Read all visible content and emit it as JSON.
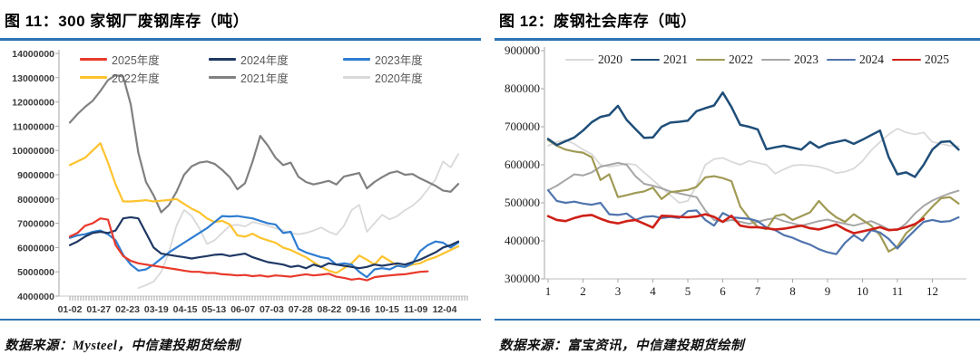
{
  "accent_rule_color": "#2e74b5",
  "panels": [
    {
      "title": "图 11：300 家钢厂废钢库存（吨）",
      "source": "数据来源：Mysteel，中信建投期货绘制"
    },
    {
      "title": "图 12：废钢社会库存（吨）",
      "source": "数据来源：富宝资讯，中信建投期货绘制"
    }
  ],
  "chart_data": [
    {
      "type": "line",
      "title": "300 家钢厂废钢库存（吨）",
      "ylabel": "吨",
      "ylim": [
        4000000,
        14000000
      ],
      "grid": false,
      "legend_position": "top-inside",
      "y_ticks": [
        14000000,
        13000000,
        12000000,
        11000000,
        10000000,
        9000000,
        8000000,
        7000000,
        6000000,
        5000000,
        4000000
      ],
      "x_tick_labels": [
        "01-02",
        "01-27",
        "02-23",
        "03-19",
        "04-15",
        "05-13",
        "06-07",
        "07-03",
        "07-28",
        "08-22",
        "09-16",
        "10-15",
        "11-09",
        "12-04"
      ],
      "x_unit": "week-of-year (0-51)",
      "legend_rows": [
        [
          "2025年度",
          "2024年度",
          "2023年度"
        ],
        [
          "2022年度",
          "2021年度",
          "2020年度"
        ]
      ],
      "series": [
        {
          "name": "2020年度",
          "color": "#d9d9d9",
          "width": 1.8,
          "start_index": 9,
          "values": [
            4330000,
            4450000,
            4600000,
            5000000,
            5800000,
            6900000,
            7550000,
            7300000,
            6800000,
            6150000,
            6300000,
            6600000,
            6900000,
            6940000,
            6870000,
            7050000,
            6980000,
            6900000,
            6800000,
            6700000,
            6600000,
            6550000,
            6600000,
            6700000,
            6830000,
            6650000,
            6530000,
            6900000,
            7540000,
            7760000,
            6650000,
            7000000,
            7350000,
            7160000,
            7300000,
            7540000,
            7720000,
            8000000,
            8400000,
            8800000,
            9550000,
            9300000,
            9850000
          ]
        },
        {
          "name": "2021年度",
          "color": "#808080",
          "width": 2.2,
          "start_index": 0,
          "values": [
            11150000,
            11500000,
            11800000,
            12050000,
            12450000,
            12900000,
            13100000,
            13050000,
            11900000,
            9900000,
            8700000,
            8150000,
            7450000,
            7750000,
            8300000,
            9000000,
            9350000,
            9500000,
            9550000,
            9450000,
            9200000,
            8900000,
            8400000,
            8650000,
            9550000,
            10600000,
            10200000,
            9700000,
            9400000,
            9500000,
            8920000,
            8700000,
            8600000,
            8670000,
            8750000,
            8600000,
            8930000,
            9000000,
            9070000,
            8440000,
            8700000,
            8900000,
            9070000,
            9140000,
            9000000,
            9030000,
            8850000,
            8700000,
            8550000,
            8350000,
            8300000,
            8620000
          ]
        },
        {
          "name": "2022年度",
          "color": "#fdc32e",
          "width": 2.2,
          "start_index": 0,
          "values": [
            9400000,
            9550000,
            9700000,
            10000000,
            10300000,
            9500000,
            8600000,
            7900000,
            7900000,
            7920000,
            7950000,
            7900000,
            7930000,
            7960000,
            8000000,
            7800000,
            7600000,
            7450000,
            7200000,
            7050000,
            7100000,
            6950000,
            6500000,
            6450000,
            6570000,
            6400000,
            6300000,
            6200000,
            6000000,
            5900000,
            5750000,
            5600000,
            5400000,
            5200000,
            5050000,
            4950000,
            5150000,
            5350000,
            5670000,
            5500000,
            5300000,
            5640000,
            5450000,
            5250000,
            5200000,
            5300000,
            5350000,
            5500000,
            5600000,
            5750000,
            5900000,
            6050000
          ]
        },
        {
          "name": "2023年度",
          "color": "#2e7dd1",
          "width": 2.2,
          "start_index": 0,
          "values": [
            6400000,
            6500000,
            6550000,
            6650000,
            6700000,
            6550000,
            6300000,
            5700000,
            5300000,
            5050000,
            5100000,
            5300000,
            5550000,
            5800000,
            6000000,
            6200000,
            6400000,
            6600000,
            6800000,
            7050000,
            7300000,
            7280000,
            7300000,
            7250000,
            7200000,
            7100000,
            7000000,
            6950000,
            6600000,
            6650000,
            5950000,
            5800000,
            5700000,
            5600000,
            5550000,
            5300000,
            5350000,
            5300000,
            5000000,
            4780000,
            5100000,
            5150000,
            5100000,
            5250000,
            5200000,
            5350000,
            5850000,
            6100000,
            6250000,
            6200000,
            6000000,
            6200000
          ]
        },
        {
          "name": "2024年度",
          "color": "#1f3864",
          "width": 2.2,
          "start_index": 0,
          "values": [
            6100000,
            6250000,
            6450000,
            6600000,
            6650000,
            6600000,
            6700000,
            7200000,
            7250000,
            7200000,
            6600000,
            6000000,
            5750000,
            5700000,
            5650000,
            5600000,
            5550000,
            5600000,
            5650000,
            5700000,
            5720000,
            5650000,
            5700000,
            5750000,
            5600000,
            5500000,
            5400000,
            5350000,
            5300000,
            5200000,
            5250000,
            5150000,
            5300000,
            5200000,
            5350000,
            5300000,
            5250000,
            5200000,
            5150000,
            5200000,
            5300000,
            5250000,
            5300000,
            5350000,
            5300000,
            5400000,
            5500000,
            5650000,
            5800000,
            6000000,
            6100000,
            6250000
          ]
        },
        {
          "name": "2025年度",
          "color": "#e8392b",
          "width": 2.2,
          "start_index": 0,
          "values": [
            6450000,
            6600000,
            6900000,
            7000000,
            7200000,
            7150000,
            6100000,
            5650000,
            5450000,
            5350000,
            5300000,
            5250000,
            5200000,
            5150000,
            5100000,
            5050000,
            5000000,
            5000000,
            4950000,
            4950000,
            4900000,
            4880000,
            4850000,
            4870000,
            4820000,
            4850000,
            4800000,
            4850000,
            4830000,
            4800000,
            4850000,
            4900000,
            4850000,
            4880000,
            4920000,
            4800000,
            4750000,
            4680000,
            4720000,
            4650000,
            4780000,
            4820000,
            4850000,
            4880000,
            4900000,
            4950000,
            5000000,
            5020000
          ]
        }
      ]
    },
    {
      "type": "line",
      "title": "废钢社会库存（吨）",
      "ylabel": "吨",
      "ylim": [
        300000,
        900000
      ],
      "grid": false,
      "legend_position": "top-inside",
      "y_ticks": [
        900000,
        800000,
        700000,
        600000,
        500000,
        400000,
        300000
      ],
      "x_tick_labels": [
        "1",
        "2",
        "3",
        "4",
        "5",
        "6",
        "7",
        "8",
        "9",
        "10",
        "11",
        "12"
      ],
      "x_unit": "month (weekly points)",
      "legend_order": [
        "2020",
        "2021",
        "2022",
        "2023",
        "2024",
        "2025"
      ],
      "series": [
        {
          "name": "2020",
          "color": "#d9d9d9",
          "width": 1.8,
          "start_index": 0,
          "values": [
            650000,
            660000,
            665000,
            655000,
            640000,
            628000,
            600000,
            595000,
            598000,
            603000,
            600000,
            580000,
            560000,
            540000,
            520000,
            500000,
            505000,
            545000,
            600000,
            615000,
            618000,
            608000,
            600000,
            610000,
            605000,
            600000,
            577000,
            588000,
            598000,
            600000,
            598000,
            595000,
            588000,
            578000,
            582000,
            590000,
            610000,
            638000,
            660000,
            680000,
            695000,
            685000,
            680000,
            685000,
            660000,
            655000,
            650000,
            648000
          ]
        },
        {
          "name": "2023",
          "color": "#a6a6a6",
          "width": 2.0,
          "start_index": 0,
          "values": [
            533000,
            545000,
            560000,
            575000,
            572000,
            580000,
            595000,
            600000,
            605000,
            600000,
            570000,
            550000,
            545000,
            538000,
            530000,
            525000,
            520000,
            515000,
            480000,
            455000,
            450000,
            455000,
            450000,
            445000,
            450000,
            456000,
            460000,
            452000,
            446000,
            440000,
            446000,
            452000,
            456000,
            450000,
            445000,
            440000,
            446000,
            452000,
            442000,
            430000,
            428000,
            446000,
            472000,
            492000,
            506000,
            516000,
            525000,
            532000
          ]
        },
        {
          "name": "2022",
          "color": "#a09a55",
          "width": 2.2,
          "start_index": 0,
          "values": [
            665000,
            650000,
            640000,
            635000,
            632000,
            620000,
            560000,
            575000,
            515000,
            520000,
            526000,
            530000,
            540000,
            510000,
            528000,
            531000,
            534000,
            542000,
            567000,
            570000,
            565000,
            557000,
            490000,
            460000,
            437000,
            431000,
            465000,
            470000,
            455000,
            465000,
            475000,
            505000,
            480000,
            462000,
            450000,
            470000,
            455000,
            440000,
            415000,
            372000,
            385000,
            420000,
            440000,
            465000,
            490000,
            512000,
            515000,
            498000
          ]
        },
        {
          "name": "2024",
          "color": "#4f74ad",
          "width": 2.2,
          "start_index": 0,
          "values": [
            533000,
            505000,
            500000,
            503000,
            498000,
            495000,
            500000,
            470000,
            468000,
            472000,
            455000,
            463000,
            465000,
            460000,
            463000,
            460000,
            478000,
            480000,
            455000,
            440000,
            473000,
            462000,
            460000,
            458000,
            452000,
            435000,
            428000,
            415000,
            408000,
            398000,
            390000,
            378000,
            370000,
            365000,
            395000,
            415000,
            400000,
            428000,
            422000,
            405000,
            380000,
            405000,
            428000,
            450000,
            455000,
            450000,
            452000,
            462000
          ]
        },
        {
          "name": "2021",
          "color": "#1f4e79",
          "width": 2.5,
          "start_index": 0,
          "values": [
            668000,
            652000,
            662000,
            672000,
            690000,
            712000,
            726000,
            731000,
            755000,
            718000,
            694000,
            671000,
            672000,
            700000,
            711000,
            713000,
            716000,
            741000,
            749000,
            756000,
            790000,
            752000,
            705000,
            700000,
            693000,
            641000,
            646000,
            650000,
            645000,
            640000,
            660000,
            645000,
            655000,
            660000,
            665000,
            655000,
            666000,
            678000,
            690000,
            620000,
            575000,
            580000,
            568000,
            600000,
            640000,
            660000,
            662000,
            640000
          ]
        },
        {
          "name": "2025",
          "color": "#cf2017",
          "width": 2.6,
          "start_index": 0,
          "values": [
            465000,
            455000,
            452000,
            460000,
            466000,
            468000,
            458000,
            450000,
            446000,
            452000,
            455000,
            445000,
            435000,
            466000,
            465000,
            463000,
            462000,
            464000,
            470000,
            463000,
            450000,
            466000,
            440000,
            436000,
            436000,
            433000,
            430000,
            432000,
            436000,
            440000,
            433000,
            430000,
            436000,
            443000,
            430000,
            420000,
            425000,
            430000,
            436000,
            428000,
            430000,
            436000,
            444000,
            458000
          ]
        }
      ]
    }
  ]
}
